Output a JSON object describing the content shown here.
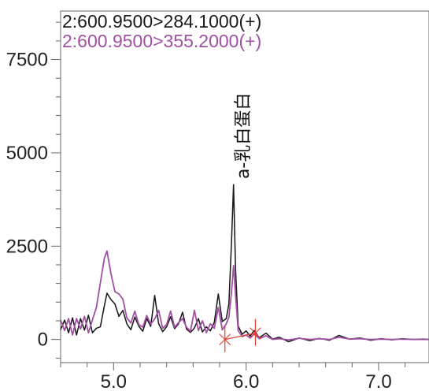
{
  "chart_data": {
    "type": "line",
    "title": "",
    "xlabel": "",
    "ylabel": "",
    "xlim": [
      4.6,
      7.38
    ],
    "ylim": [
      -620,
      8800
    ],
    "grid": false,
    "legend_position": "top-left",
    "x_ticks": [
      5.0,
      6.0,
      7.0
    ],
    "x_tick_labels": [
      "5.0",
      "6.0",
      "7.0"
    ],
    "y_ticks": [
      0,
      2500,
      5000,
      7500
    ],
    "y_tick_labels": [
      "0",
      "2500",
      "5000",
      "7500"
    ],
    "colors": {
      "series_1": "#1a1a1a",
      "series_2": "#a24fa5",
      "integration": "#e63c2e",
      "axis": "#666666"
    },
    "series": [
      {
        "name": "2:600.9500>284.1000(+)",
        "color": "#1a1a1a",
        "points": [
          [
            4.6,
            260
          ],
          [
            4.63,
            520
          ],
          [
            4.66,
            180
          ],
          [
            4.69,
            580
          ],
          [
            4.72,
            120
          ],
          [
            4.75,
            560
          ],
          [
            4.78,
            250
          ],
          [
            4.81,
            650
          ],
          [
            4.84,
            180
          ],
          [
            4.87,
            300
          ],
          [
            4.9,
            340
          ],
          [
            4.93,
            900
          ],
          [
            4.95,
            1240
          ],
          [
            4.98,
            1070
          ],
          [
            5.01,
            950
          ],
          [
            5.04,
            620
          ],
          [
            5.07,
            780
          ],
          [
            5.1,
            420
          ],
          [
            5.13,
            260
          ],
          [
            5.16,
            600
          ],
          [
            5.19,
            360
          ],
          [
            5.22,
            220
          ],
          [
            5.25,
            560
          ],
          [
            5.28,
            350
          ],
          [
            5.31,
            1180
          ],
          [
            5.34,
            420
          ],
          [
            5.37,
            210
          ],
          [
            5.4,
            340
          ],
          [
            5.43,
            610
          ],
          [
            5.46,
            290
          ],
          [
            5.49,
            420
          ],
          [
            5.52,
            730
          ],
          [
            5.55,
            280
          ],
          [
            5.58,
            190
          ],
          [
            5.61,
            310
          ],
          [
            5.64,
            560
          ],
          [
            5.67,
            200
          ],
          [
            5.7,
            340
          ],
          [
            5.73,
            230
          ],
          [
            5.76,
            460
          ],
          [
            5.79,
            1220
          ],
          [
            5.82,
            480
          ],
          [
            5.85,
            560
          ],
          [
            5.87,
            950
          ],
          [
            5.89,
            2650
          ],
          [
            5.905,
            4150
          ],
          [
            5.92,
            1900
          ],
          [
            5.94,
            360
          ],
          [
            5.97,
            140
          ],
          [
            6.0,
            230
          ],
          [
            6.03,
            90
          ],
          [
            6.06,
            240
          ],
          [
            6.1,
            50
          ],
          [
            6.15,
            170
          ],
          [
            6.2,
            10
          ],
          [
            6.25,
            60
          ],
          [
            6.32,
            -60
          ],
          [
            6.4,
            40
          ],
          [
            6.48,
            -30
          ],
          [
            6.55,
            30
          ],
          [
            6.63,
            -20
          ],
          [
            6.7,
            110
          ],
          [
            6.78,
            10
          ],
          [
            6.86,
            40
          ],
          [
            6.94,
            -20
          ],
          [
            7.02,
            20
          ],
          [
            7.1,
            -10
          ],
          [
            7.18,
            20
          ],
          [
            7.26,
            0
          ],
          [
            7.34,
            10
          ],
          [
            7.38,
            0
          ]
        ]
      },
      {
        "name": "2:600.9500>355.2000(+)",
        "color": "#a24fa5",
        "points": [
          [
            4.6,
            520
          ],
          [
            4.63,
            240
          ],
          [
            4.66,
            560
          ],
          [
            4.69,
            120
          ],
          [
            4.72,
            560
          ],
          [
            4.75,
            280
          ],
          [
            4.78,
            620
          ],
          [
            4.81,
            180
          ],
          [
            4.84,
            520
          ],
          [
            4.87,
            860
          ],
          [
            4.9,
            1520
          ],
          [
            4.93,
            2180
          ],
          [
            4.95,
            2370
          ],
          [
            4.98,
            1760
          ],
          [
            5.01,
            1280
          ],
          [
            5.04,
            1220
          ],
          [
            5.07,
            1080
          ],
          [
            5.1,
            580
          ],
          [
            5.13,
            440
          ],
          [
            5.16,
            760
          ],
          [
            5.19,
            400
          ],
          [
            5.22,
            330
          ],
          [
            5.25,
            640
          ],
          [
            5.28,
            410
          ],
          [
            5.31,
            550
          ],
          [
            5.34,
            780
          ],
          [
            5.37,
            300
          ],
          [
            5.4,
            400
          ],
          [
            5.43,
            760
          ],
          [
            5.46,
            330
          ],
          [
            5.49,
            450
          ],
          [
            5.52,
            560
          ],
          [
            5.55,
            330
          ],
          [
            5.58,
            220
          ],
          [
            5.61,
            780
          ],
          [
            5.64,
            240
          ],
          [
            5.67,
            500
          ],
          [
            5.7,
            180
          ],
          [
            5.73,
            420
          ],
          [
            5.76,
            300
          ],
          [
            5.79,
            860
          ],
          [
            5.82,
            260
          ],
          [
            5.85,
            420
          ],
          [
            5.87,
            600
          ],
          [
            5.89,
            1280
          ],
          [
            5.905,
            1980
          ],
          [
            5.92,
            1200
          ],
          [
            5.94,
            240
          ],
          [
            5.97,
            80
          ],
          [
            6.0,
            120
          ],
          [
            6.03,
            40
          ],
          [
            6.06,
            150
          ],
          [
            6.1,
            20
          ],
          [
            6.15,
            100
          ],
          [
            6.2,
            0
          ],
          [
            6.25,
            20
          ],
          [
            6.32,
            -10
          ],
          [
            6.4,
            30
          ],
          [
            6.48,
            0
          ],
          [
            6.55,
            20
          ],
          [
            6.63,
            0
          ],
          [
            6.7,
            60
          ],
          [
            6.78,
            10
          ],
          [
            6.86,
            20
          ],
          [
            6.94,
            0
          ],
          [
            7.02,
            10
          ],
          [
            7.1,
            0
          ],
          [
            7.18,
            10
          ],
          [
            7.26,
            0
          ],
          [
            7.34,
            0
          ],
          [
            7.38,
            0
          ]
        ]
      }
    ],
    "integration": {
      "baseline": {
        "x1": 5.84,
        "y1": 0,
        "x2": 6.07,
        "y2": 170
      },
      "markers": [
        {
          "x": 5.84,
          "y": 0
        },
        {
          "x": 6.07,
          "y": 170
        }
      ]
    },
    "annotations": [
      {
        "text": "a-乳白蛋白",
        "x": 6.02,
        "y": 4300,
        "rotation": -90
      }
    ]
  }
}
